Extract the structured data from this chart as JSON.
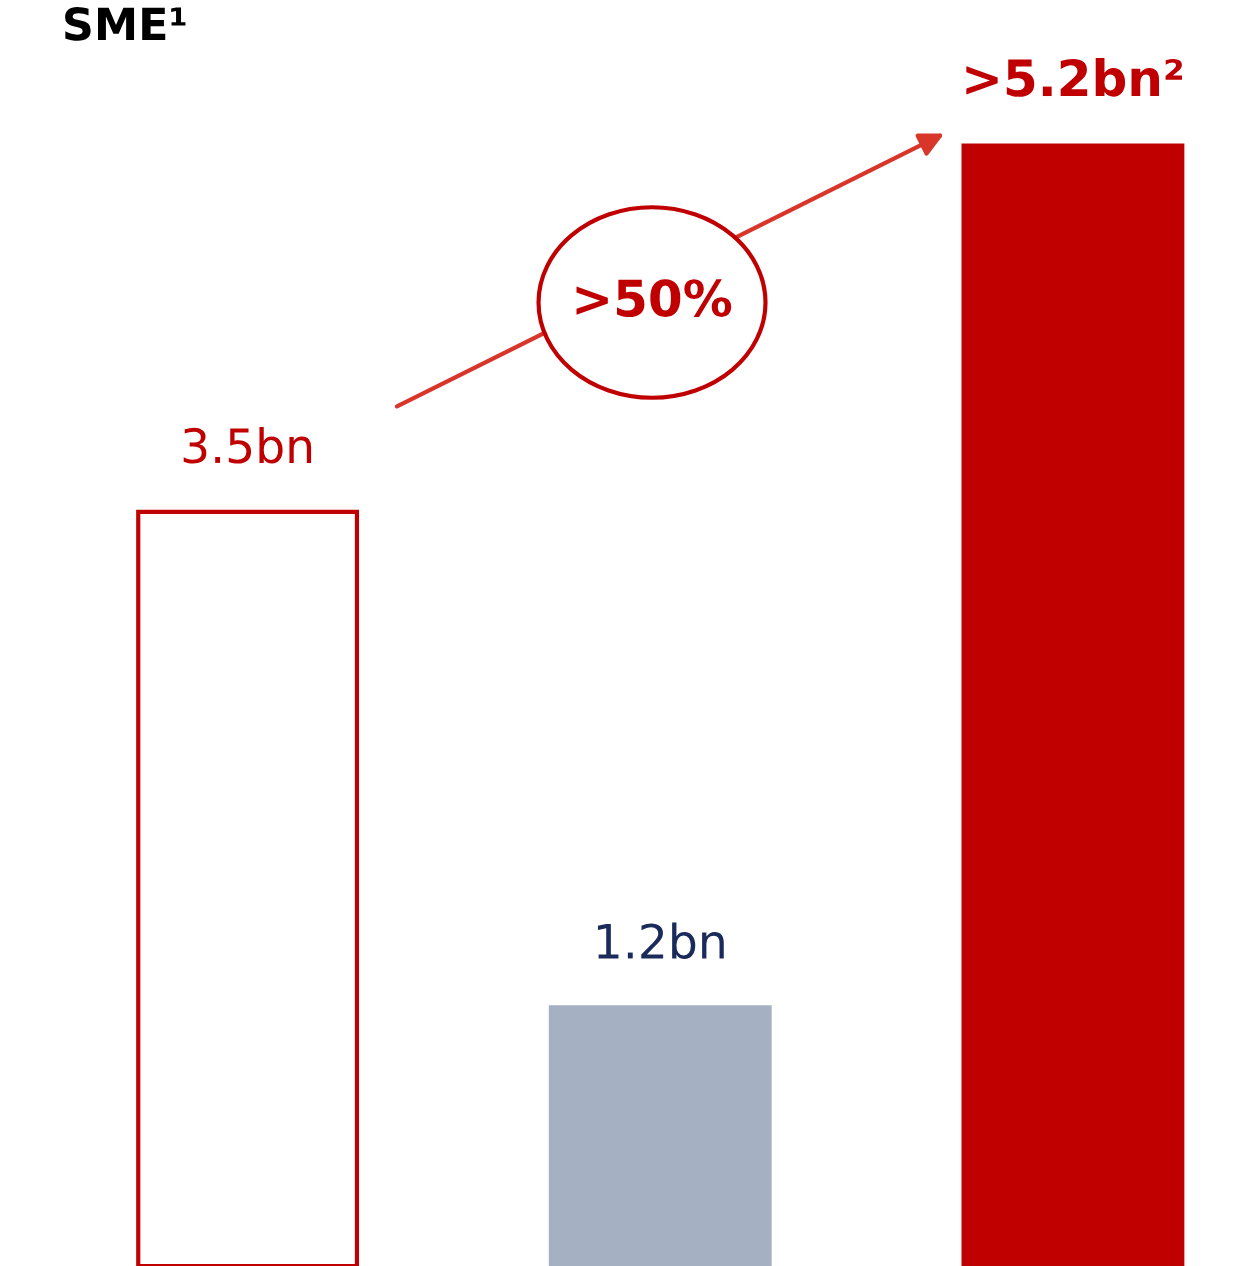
{
  "chart_data": {
    "type": "bar",
    "title": "SME¹",
    "categories": [
      null,
      null,
      null
    ],
    "values": [
      3.5,
      1.2,
      5.2
    ],
    "colors": [
      "#ffffff",
      "#a5b1c2",
      "#c00000"
    ],
    "value_labels": [
      "3.5bn",
      "1.2bn",
      ">5.2bn²"
    ],
    "annotations": [
      ">50%"
    ],
    "grid": false
  }
}
